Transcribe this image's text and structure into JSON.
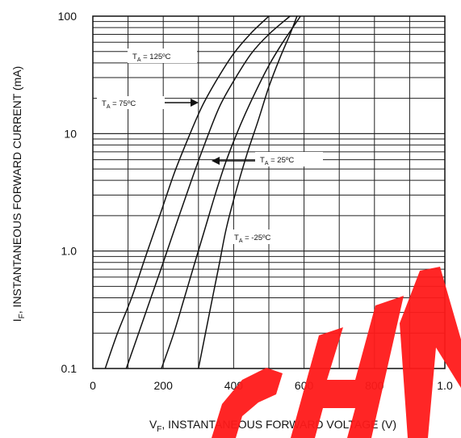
{
  "chart_data": {
    "type": "line",
    "title": "",
    "xlabel": "V",
    "xlabel_sub": "F",
    "xlabel_rest": ", INSTANTANEOUS FORWARD VOLTAGE (V)",
    "ylabel": "I",
    "ylabel_sub": "F",
    "ylabel_rest": ", INSTANTANEOUS FORWARD CURRENT (mA)",
    "x_ticks": [
      "0",
      "200",
      "400",
      "600",
      "800",
      "1.0"
    ],
    "y_ticks": [
      "0.1",
      "1.0",
      "10",
      "100"
    ],
    "xlim": [
      0,
      1000
    ],
    "ylim": [
      0.1,
      100
    ],
    "y_scale": "log",
    "grid": true,
    "series": [
      {
        "label_prefix": "T",
        "label_sub": "A",
        "label_rest": " = 125ºC",
        "x": [
          35,
          70,
          110,
          150,
          190,
          230,
          270,
          310,
          350,
          400,
          450,
          500
        ],
        "y": [
          0.1,
          0.2,
          0.4,
          0.9,
          2.0,
          4.5,
          9.0,
          17,
          28,
          48,
          72,
          100
        ]
      },
      {
        "label_prefix": "T",
        "label_sub": "A",
        "label_rest": " = 75ºC",
        "x": [
          95,
          130,
          165,
          200,
          240,
          280,
          320,
          360,
          400,
          450,
          500,
          560
        ],
        "y": [
          0.1,
          0.2,
          0.4,
          0.8,
          1.8,
          4.0,
          8.5,
          17,
          28,
          48,
          70,
          100
        ]
      },
      {
        "label_prefix": "T",
        "label_sub": "A",
        "label_rest": " = 25ºC",
        "x": [
          195,
          230,
          260,
          290,
          320,
          350,
          380,
          420,
          460,
          500,
          540,
          590
        ],
        "y": [
          0.1,
          0.2,
          0.4,
          0.8,
          1.6,
          3.2,
          6.0,
          12,
          22,
          38,
          60,
          100
        ]
      },
      {
        "label_prefix": "T",
        "label_sub": "A",
        "label_rest": " = -25ºC",
        "x": [
          300,
          320,
          340,
          360,
          380,
          410,
          440,
          470,
          500,
          530,
          560,
          580
        ],
        "y": [
          0.1,
          0.2,
          0.4,
          0.8,
          1.6,
          3.5,
          7.0,
          13,
          25,
          43,
          70,
          100
        ]
      }
    ]
  }
}
